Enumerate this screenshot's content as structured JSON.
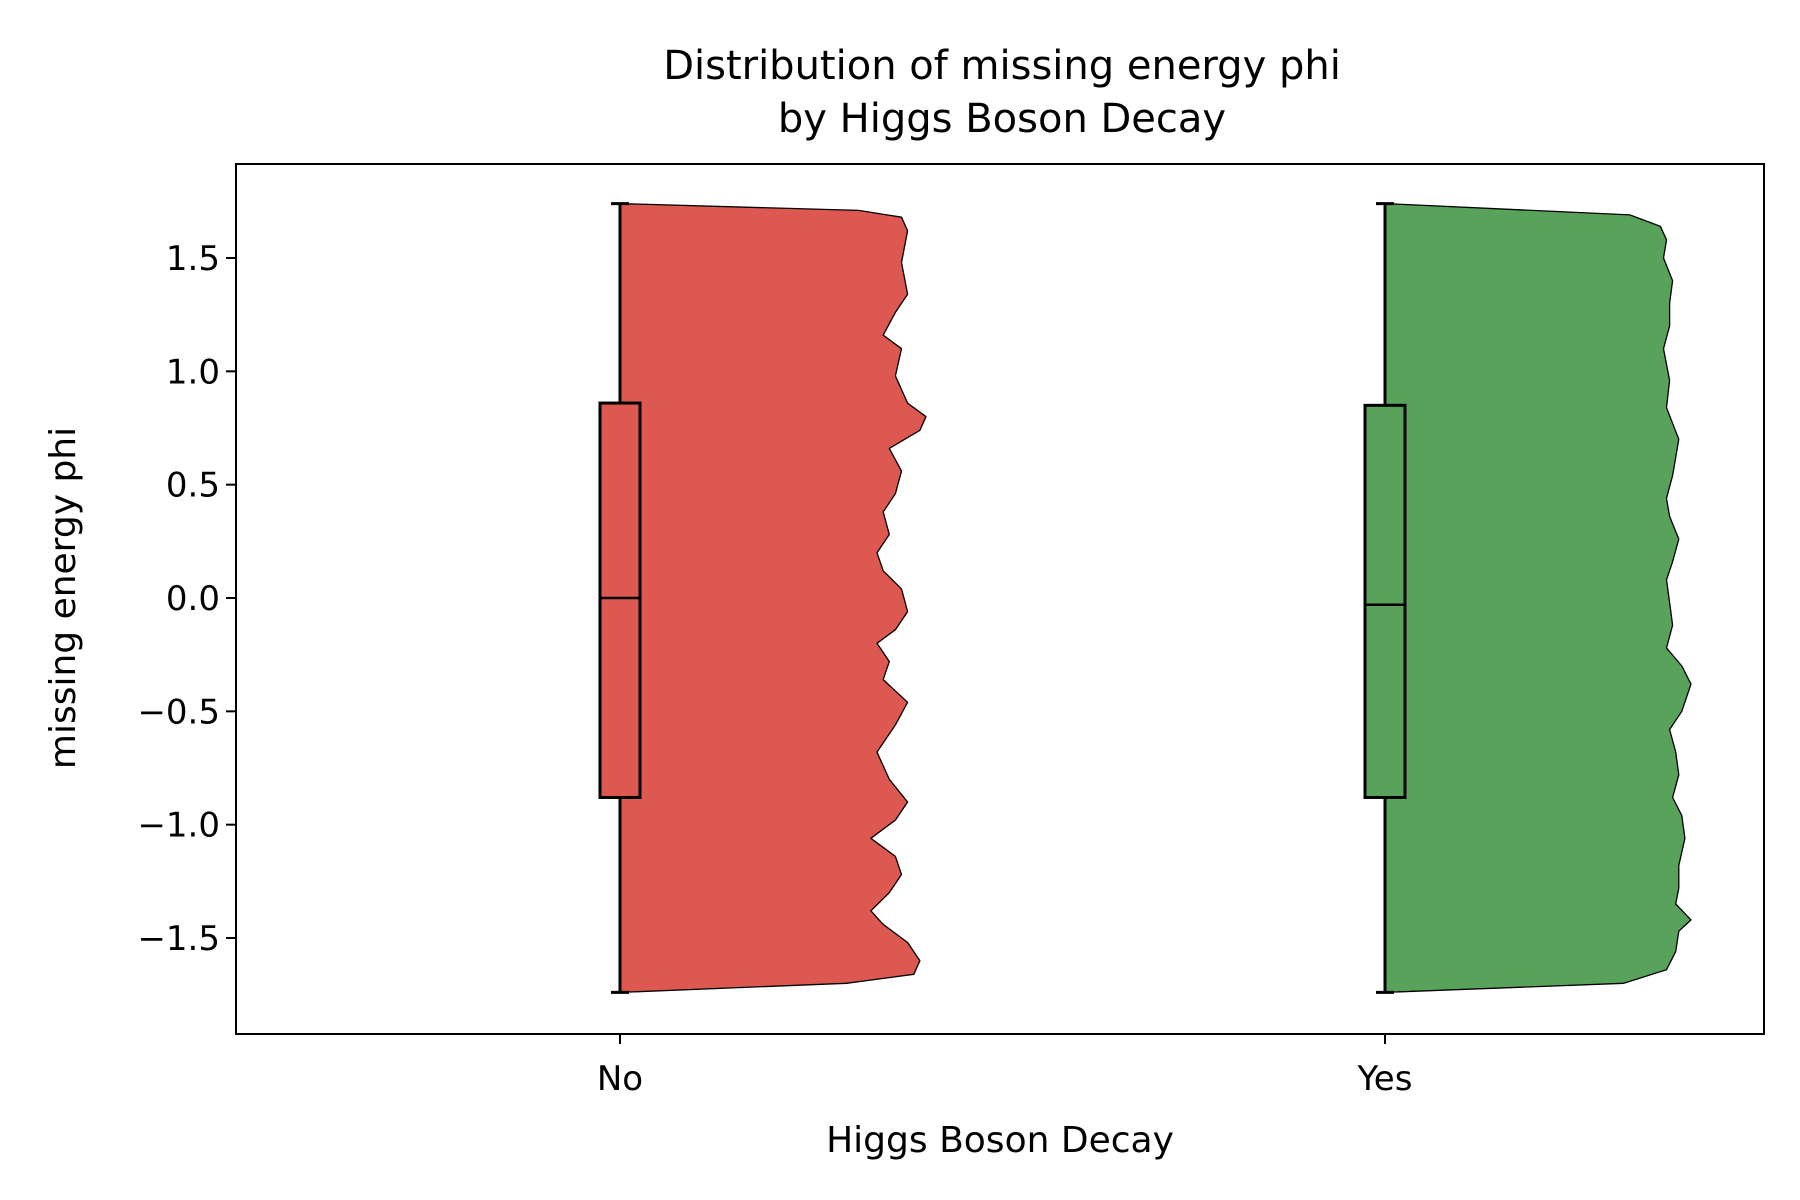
{
  "chart_data": {
    "type": "violin",
    "title_lines": [
      "Distribution of missing energy phi",
      "by Higgs Boson Decay"
    ],
    "xlabel": "Higgs Boson Decay",
    "ylabel": "missing energy phi",
    "categories": [
      "No",
      "Yes"
    ],
    "ylim": [
      -1.92,
      1.92
    ],
    "yticks": [
      -1.5,
      -1.0,
      -0.5,
      0.0,
      0.5,
      1.0,
      1.5
    ],
    "ytick_labels": [
      "−1.5",
      "−1.0",
      "−0.5",
      "0.0",
      "0.5",
      "1.0",
      "1.5"
    ],
    "grid": false,
    "colors": {
      "No": "#dc5850",
      "Yes": "#58a25c"
    },
    "series": [
      {
        "category": "No",
        "box": {
          "whisker_low": -1.74,
          "q1": -0.88,
          "median": 0.0,
          "q3": 0.86,
          "whisker_high": 1.74
        },
        "density_profile": [
          [
            -1.74,
            0.0
          ],
          [
            -1.7,
            0.74
          ],
          [
            -1.66,
            0.96
          ],
          [
            -1.6,
            0.98
          ],
          [
            -1.52,
            0.94
          ],
          [
            -1.44,
            0.86
          ],
          [
            -1.38,
            0.82
          ],
          [
            -1.3,
            0.88
          ],
          [
            -1.22,
            0.92
          ],
          [
            -1.14,
            0.9
          ],
          [
            -1.06,
            0.82
          ],
          [
            -0.98,
            0.9
          ],
          [
            -0.9,
            0.94
          ],
          [
            -0.8,
            0.88
          ],
          [
            -0.68,
            0.84
          ],
          [
            -0.56,
            0.9
          ],
          [
            -0.46,
            0.94
          ],
          [
            -0.36,
            0.86
          ],
          [
            -0.28,
            0.88
          ],
          [
            -0.2,
            0.84
          ],
          [
            -0.14,
            0.9
          ],
          [
            -0.06,
            0.94
          ],
          [
            0.04,
            0.92
          ],
          [
            0.12,
            0.86
          ],
          [
            0.2,
            0.84
          ],
          [
            0.28,
            0.88
          ],
          [
            0.38,
            0.86
          ],
          [
            0.46,
            0.9
          ],
          [
            0.56,
            0.92
          ],
          [
            0.66,
            0.88
          ],
          [
            0.74,
            0.98
          ],
          [
            0.8,
            1.0
          ],
          [
            0.86,
            0.94
          ],
          [
            0.98,
            0.9
          ],
          [
            1.1,
            0.92
          ],
          [
            1.16,
            0.86
          ],
          [
            1.26,
            0.9
          ],
          [
            1.34,
            0.94
          ],
          [
            1.48,
            0.92
          ],
          [
            1.62,
            0.94
          ],
          [
            1.68,
            0.92
          ],
          [
            1.71,
            0.78
          ],
          [
            1.74,
            0.0
          ]
        ]
      },
      {
        "category": "Yes",
        "box": {
          "whisker_low": -1.74,
          "q1": -0.88,
          "median": -0.03,
          "q3": 0.85,
          "whisker_high": 1.74
        },
        "density_profile": [
          [
            -1.74,
            0.0
          ],
          [
            -1.7,
            0.78
          ],
          [
            -1.64,
            0.92
          ],
          [
            -1.56,
            0.95
          ],
          [
            -1.47,
            0.96
          ],
          [
            -1.42,
            1.0
          ],
          [
            -1.35,
            0.95
          ],
          [
            -1.28,
            0.96
          ],
          [
            -1.18,
            0.96
          ],
          [
            -1.06,
            0.98
          ],
          [
            -0.96,
            0.97
          ],
          [
            -0.88,
            0.94
          ],
          [
            -0.78,
            0.96
          ],
          [
            -0.68,
            0.95
          ],
          [
            -0.58,
            0.93
          ],
          [
            -0.5,
            0.97
          ],
          [
            -0.38,
            1.0
          ],
          [
            -0.3,
            0.97
          ],
          [
            -0.22,
            0.92
          ],
          [
            -0.12,
            0.94
          ],
          [
            -0.02,
            0.93
          ],
          [
            0.08,
            0.92
          ],
          [
            0.16,
            0.94
          ],
          [
            0.26,
            0.96
          ],
          [
            0.36,
            0.93
          ],
          [
            0.44,
            0.92
          ],
          [
            0.54,
            0.94
          ],
          [
            0.7,
            0.96
          ],
          [
            0.84,
            0.92
          ],
          [
            0.96,
            0.93
          ],
          [
            1.1,
            0.91
          ],
          [
            1.2,
            0.93
          ],
          [
            1.3,
            0.93
          ],
          [
            1.4,
            0.94
          ],
          [
            1.5,
            0.91
          ],
          [
            1.58,
            0.92
          ],
          [
            1.64,
            0.9
          ],
          [
            1.69,
            0.8
          ],
          [
            1.74,
            0.0
          ]
        ]
      }
    ]
  }
}
